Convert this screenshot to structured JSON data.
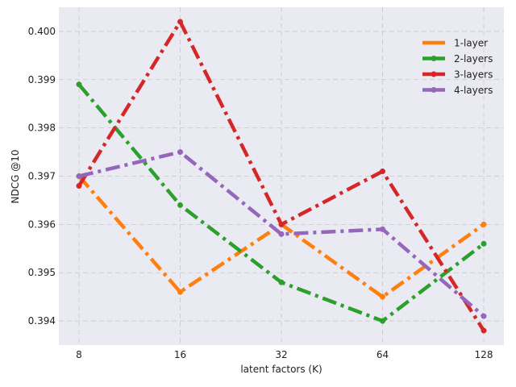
{
  "chart_data": {
    "type": "line",
    "title": "",
    "xlabel": "latent factors (K)",
    "ylabel": "NDCG @10",
    "categories": [
      "8",
      "16",
      "32",
      "64",
      "128"
    ],
    "ylim": [
      0.3935,
      0.4005
    ],
    "yticks": [
      "0.394",
      "0.395",
      "0.396",
      "0.397",
      "0.398",
      "0.399",
      "0.400"
    ],
    "grid": true,
    "legend_position": "top-right",
    "series": [
      {
        "name": "1-layer",
        "color": "#ff7f0e",
        "marker": "none",
        "style": "dashdot",
        "values": [
          0.397,
          0.3946,
          0.396,
          0.3945,
          0.396
        ]
      },
      {
        "name": "2-layers",
        "color": "#2ca02c",
        "marker": "circle",
        "style": "dashdot",
        "values": [
          0.3989,
          0.3964,
          0.3948,
          0.394,
          0.3956
        ]
      },
      {
        "name": "3-layers",
        "color": "#d62728",
        "marker": "circle",
        "style": "dashdot",
        "values": [
          0.3968,
          0.4002,
          0.396,
          0.3971,
          0.3938
        ]
      },
      {
        "name": "4-layers",
        "color": "#9467bd",
        "marker": "circle",
        "style": "dashdot",
        "values": [
          0.397,
          0.3975,
          0.3958,
          0.3959,
          0.3941
        ]
      }
    ]
  }
}
